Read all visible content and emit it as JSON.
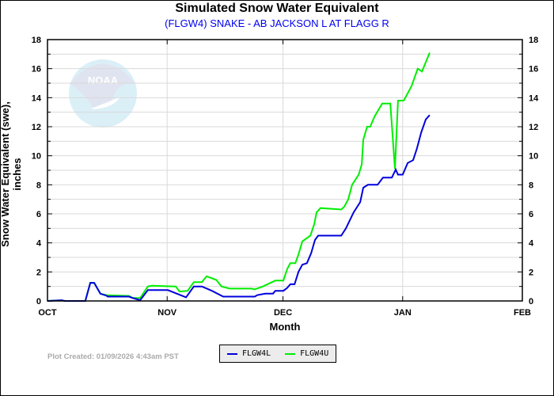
{
  "chart_data": {
    "type": "line",
    "title": "Simulated Snow Water Equivalent",
    "subtitle": "(FLGW4) SNAKE - AB JACKSON L AT FLAGG R",
    "xlabel": "Month",
    "ylabel": "Snow Water Equivalent (swe),  inches",
    "x_units": "days since Oct 1",
    "xlim": [
      0,
      123
    ],
    "ylim": [
      0,
      18
    ],
    "yticks": [
      0,
      2,
      4,
      6,
      8,
      10,
      12,
      14,
      16,
      18
    ],
    "xticks": [
      {
        "label": "OCT",
        "x": 0
      },
      {
        "label": "NOV",
        "x": 31
      },
      {
        "label": "DEC",
        "x": 61
      },
      {
        "label": "JAN",
        "x": 92
      },
      {
        "label": "FEB",
        "x": 123
      }
    ],
    "grid": true,
    "legend_position": "bottom-center",
    "series": [
      {
        "name": "FLGW4L",
        "color": "#0000dd",
        "points": [
          [
            0,
            0
          ],
          [
            3.7,
            0.05
          ],
          [
            4.5,
            0
          ],
          [
            9.8,
            0
          ],
          [
            11.1,
            1.25
          ],
          [
            12.1,
            1.25
          ],
          [
            13.7,
            0.5
          ],
          [
            15.4,
            0.35
          ],
          [
            15.6,
            0.3
          ],
          [
            21.1,
            0.3
          ],
          [
            22.1,
            0.2
          ],
          [
            24.0,
            0.05
          ],
          [
            26.0,
            0.75
          ],
          [
            31.2,
            0.75
          ],
          [
            35.9,
            0.25
          ],
          [
            37.9,
            1.0
          ],
          [
            40.0,
            1.0
          ],
          [
            42.6,
            0.7
          ],
          [
            45.5,
            0.3
          ],
          [
            53.7,
            0.3
          ],
          [
            54.3,
            0.4
          ],
          [
            56.4,
            0.5
          ],
          [
            58.4,
            0.5
          ],
          [
            59.0,
            0.7
          ],
          [
            61.1,
            0.7
          ],
          [
            62.1,
            0.9
          ],
          [
            62.9,
            1.15
          ],
          [
            64.0,
            1.15
          ],
          [
            65.0,
            2.0
          ],
          [
            66.0,
            2.5
          ],
          [
            67.2,
            2.6
          ],
          [
            68.3,
            3.3
          ],
          [
            69.3,
            4.2
          ],
          [
            70.1,
            4.5
          ],
          [
            76.1,
            4.5
          ],
          [
            77.3,
            5.0
          ],
          [
            79.3,
            6.1
          ],
          [
            81.0,
            6.8
          ],
          [
            81.8,
            7.8
          ],
          [
            83.0,
            8.0
          ],
          [
            85.5,
            8.0
          ],
          [
            86.9,
            8.5
          ],
          [
            89.2,
            8.5
          ],
          [
            90.2,
            9.05
          ],
          [
            90.8,
            8.7
          ],
          [
            92.0,
            8.7
          ],
          [
            93.3,
            9.5
          ],
          [
            94.7,
            9.7
          ],
          [
            95.7,
            10.5
          ],
          [
            96.8,
            11.6
          ],
          [
            98.0,
            12.5
          ],
          [
            99.0,
            12.8
          ]
        ]
      },
      {
        "name": "FLGW4U",
        "color": "#00ee00",
        "points": [
          [
            0,
            0
          ],
          [
            3.7,
            0.05
          ],
          [
            4.5,
            0
          ],
          [
            9.8,
            0
          ],
          [
            11.1,
            1.25
          ],
          [
            12.1,
            1.25
          ],
          [
            13.7,
            0.5
          ],
          [
            15.4,
            0.4
          ],
          [
            21.1,
            0.35
          ],
          [
            22.1,
            0.2
          ],
          [
            24.0,
            0.2
          ],
          [
            26.0,
            1.0
          ],
          [
            27.1,
            1.05
          ],
          [
            33.2,
            1.0
          ],
          [
            34.2,
            0.65
          ],
          [
            36.3,
            0.7
          ],
          [
            37.9,
            1.3
          ],
          [
            40.0,
            1.3
          ],
          [
            41.2,
            1.7
          ],
          [
            43.7,
            1.45
          ],
          [
            45.1,
            1.0
          ],
          [
            47.2,
            0.85
          ],
          [
            52.9,
            0.85
          ],
          [
            53.7,
            0.8
          ],
          [
            55.8,
            1.0
          ],
          [
            59.0,
            1.4
          ],
          [
            61.1,
            1.4
          ],
          [
            62.1,
            2.2
          ],
          [
            62.9,
            2.6
          ],
          [
            64.2,
            2.6
          ],
          [
            65.0,
            3.2
          ],
          [
            66.0,
            4.1
          ],
          [
            68.1,
            4.5
          ],
          [
            69.1,
            5.3
          ],
          [
            69.7,
            6.1
          ],
          [
            70.7,
            6.4
          ],
          [
            76.1,
            6.3
          ],
          [
            76.9,
            6.5
          ],
          [
            77.9,
            7.0
          ],
          [
            78.9,
            8.0
          ],
          [
            80.6,
            8.7
          ],
          [
            81.4,
            9.4
          ],
          [
            81.8,
            11.1
          ],
          [
            82.8,
            12.0
          ],
          [
            83.6,
            12.0
          ],
          [
            84.7,
            12.7
          ],
          [
            86.7,
            13.6
          ],
          [
            88.8,
            13.6
          ],
          [
            90.0,
            9.1
          ],
          [
            90.8,
            13.8
          ],
          [
            92.3,
            13.8
          ],
          [
            94.3,
            14.8
          ],
          [
            95.9,
            16.0
          ],
          [
            97.0,
            15.8
          ],
          [
            99.0,
            17.1
          ]
        ]
      }
    ]
  },
  "footer": "Plot Created: 01/09/2026 4:43am PST",
  "logo_text": "NOAA"
}
